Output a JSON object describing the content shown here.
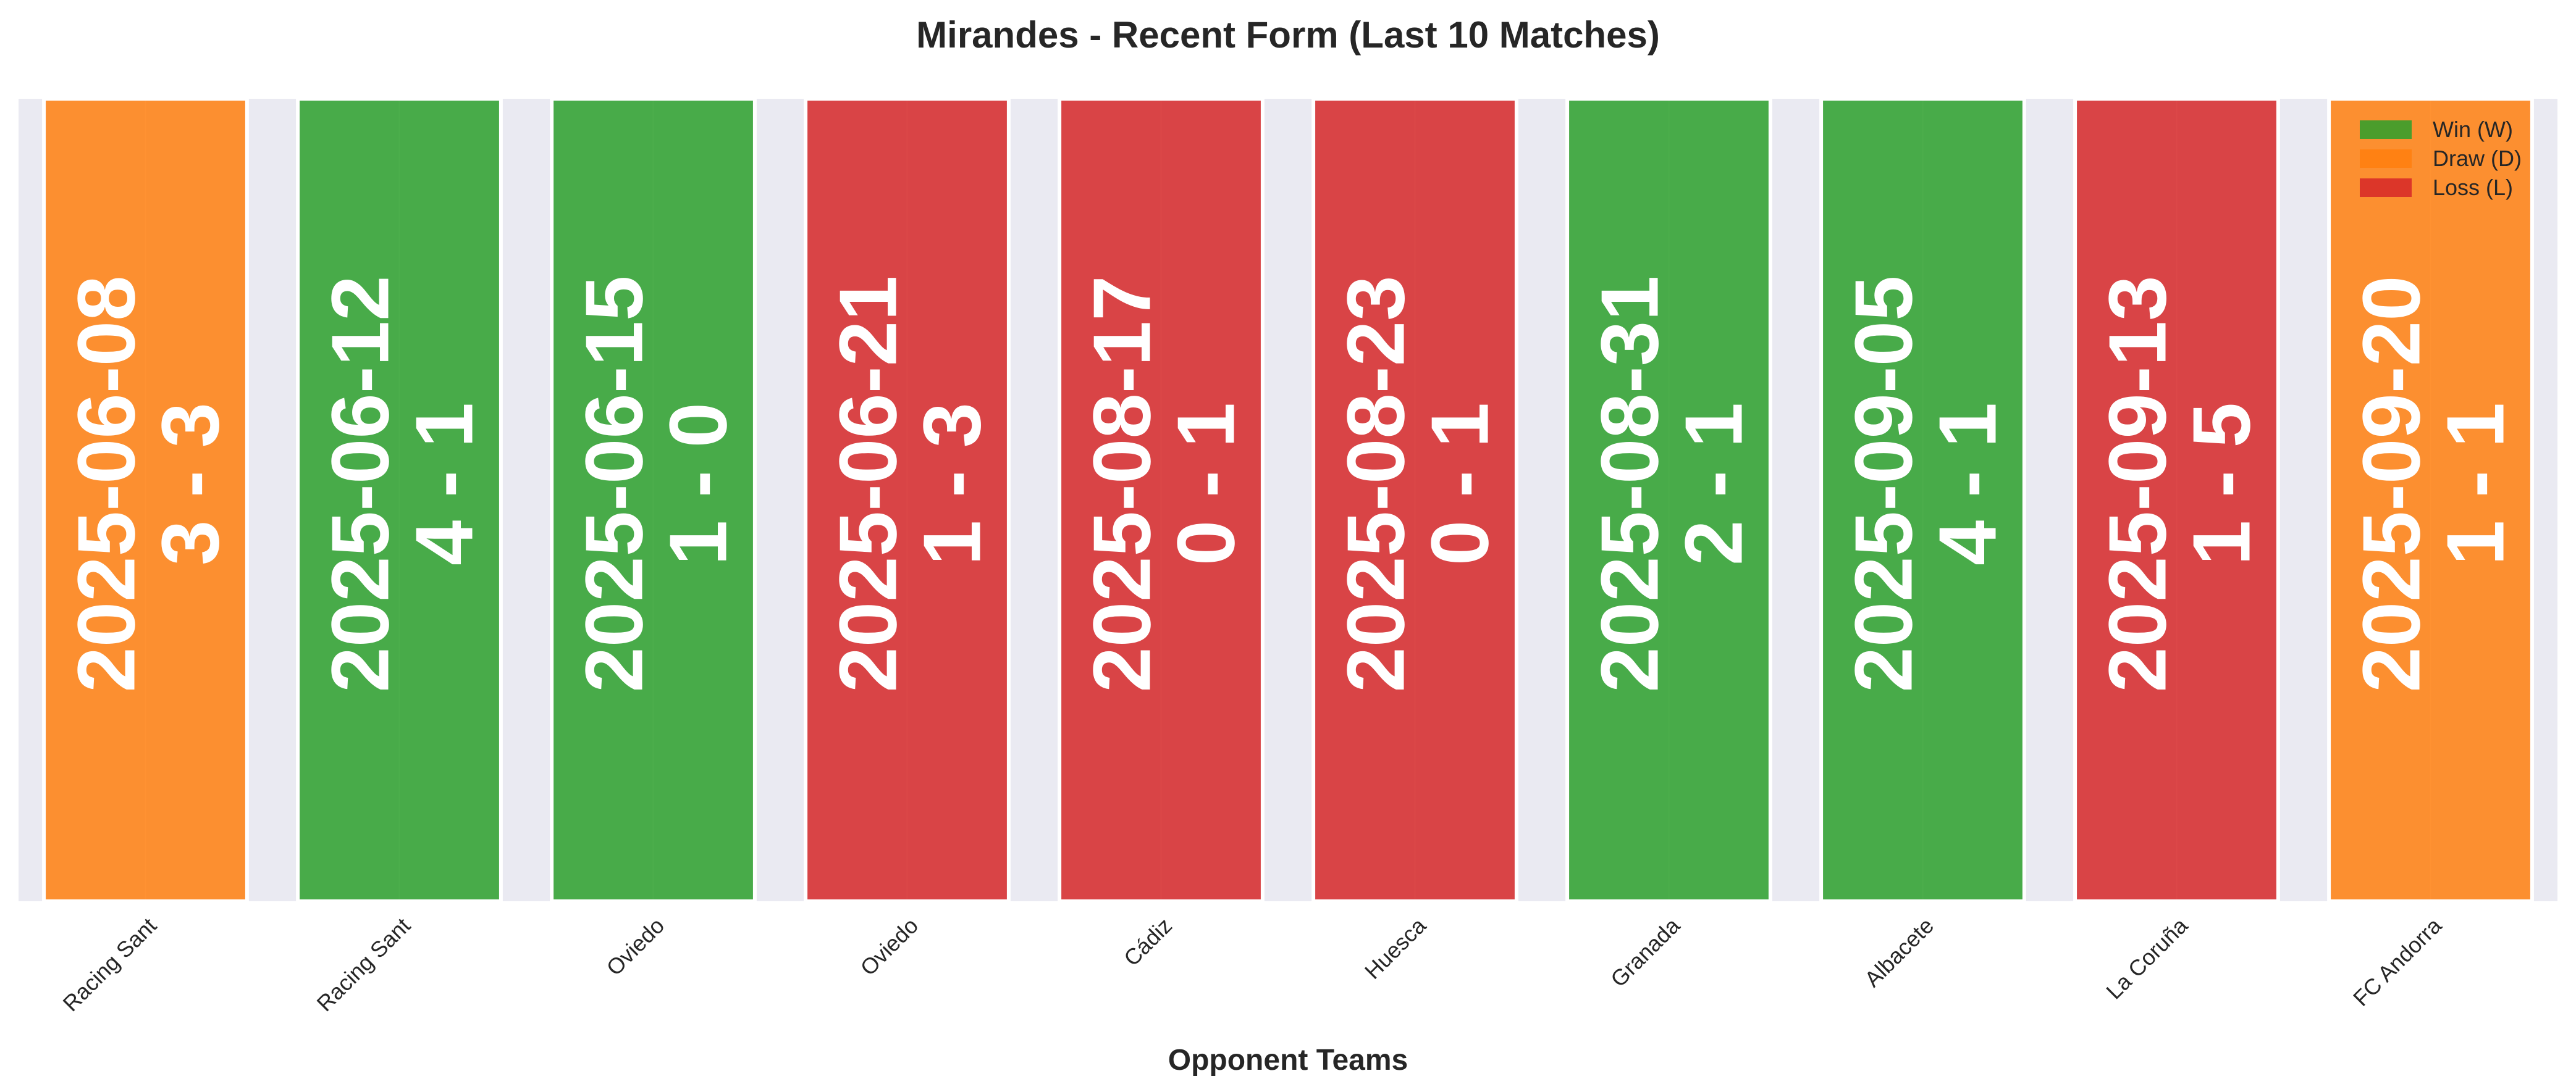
{
  "chart_data": {
    "type": "bar",
    "title": "Mirandes - Recent Form (Last 10 Matches)",
    "xlabel": "Opponent Teams",
    "ylabel": "",
    "grid": true,
    "legend_placement": "top-right",
    "categories": [
      "Racing Sant",
      "Racing Sant",
      "Oviedo",
      "Oviedo",
      "Cádiz",
      "Huesca",
      "Granada",
      "Albacete",
      "La Coruña",
      "FC Andorra"
    ],
    "results": [
      "D",
      "W",
      "W",
      "L",
      "L",
      "L",
      "W",
      "W",
      "L",
      "D"
    ],
    "dates": [
      "2025-06-08",
      "2025-06-12",
      "2025-06-15",
      "2025-06-21",
      "2025-08-17",
      "2025-08-23",
      "2025-08-31",
      "2025-09-05",
      "2025-09-13",
      "2025-09-20"
    ],
    "scores": [
      "3 - 3",
      "4 - 1",
      "1 - 0",
      "1 - 3",
      "0 - 1",
      "0 - 1",
      "2 - 1",
      "4 - 1",
      "1 - 5",
      "1 - 1"
    ],
    "values": [
      1,
      1,
      1,
      1,
      1,
      1,
      1,
      1,
      1,
      1
    ],
    "ylim": [
      0,
      1
    ],
    "legend": [
      {
        "key": "W",
        "label": "Win (W)",
        "color": "#2ca02c"
      },
      {
        "key": "D",
        "label": "Draw (D)",
        "color": "#ff7f0e"
      },
      {
        "key": "L",
        "label": "Loss (L)",
        "color": "#d62728"
      }
    ],
    "colors": {
      "W": "#2ca02c",
      "D": "#ff7f0e",
      "L": "#d62728",
      "plot_bg": "#eaeaf2"
    }
  }
}
